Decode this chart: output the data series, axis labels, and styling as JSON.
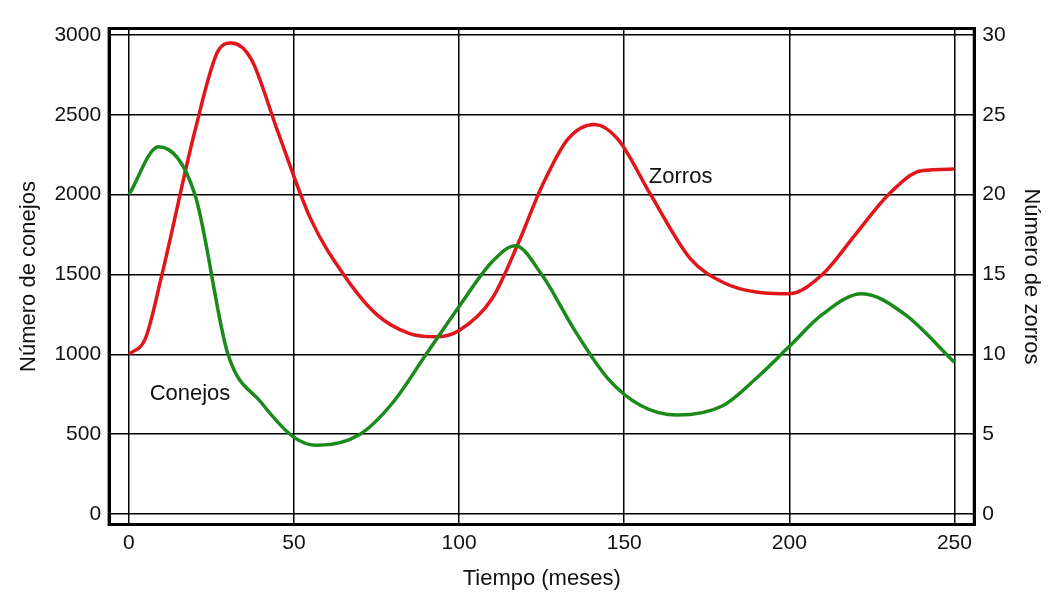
{
  "chart_data": {
    "type": "line",
    "xlabel": "Tiempo (meses)",
    "ylabel": "Número de conejos",
    "y2label": "Número de zorros",
    "xlim": [
      -6,
      256
    ],
    "xticks": [
      0,
      50,
      100,
      150,
      200,
      250
    ],
    "ylim": [
      -65,
      3040
    ],
    "yticks": [
      0,
      500,
      1000,
      1500,
      2000,
      2500,
      3000
    ],
    "y2lim": [
      -0.65,
      30.4
    ],
    "y2ticks": [
      0,
      5,
      10,
      15,
      20,
      25,
      30
    ],
    "grid": true,
    "legend": false,
    "marker": "none",
    "line_style": "solid",
    "series": [
      {
        "name": "Conejos",
        "color": "#1a8a1a",
        "x": [
          0,
          9,
          20,
          30,
          40,
          50,
          57,
          70,
          80,
          90,
          100,
          110,
          117,
          125,
          135,
          145,
          155,
          166,
          180,
          190,
          200,
          210,
          222,
          235,
          250
        ],
        "values": [
          2000,
          2300,
          2000,
          1000,
          700,
          480,
          430,
          500,
          700,
          1000,
          1300,
          1580,
          1680,
          1500,
          1150,
          850,
          680,
          620,
          680,
          850,
          1050,
          1250,
          1380,
          1250,
          950
        ]
      },
      {
        "name": "Zorros",
        "color": "#e0161b",
        "axis": "y2",
        "x": [
          0,
          5,
          10,
          20,
          27,
          31,
          37,
          45,
          55,
          65,
          75,
          85,
          93,
          100,
          110,
          118,
          125,
          133,
          141,
          148,
          158,
          170,
          180,
          190,
          200,
          210,
          220,
          230,
          240,
          250
        ],
        "values": [
          10,
          11,
          15,
          24,
          29,
          29.5,
          28.5,
          24,
          18.5,
          15,
          12.5,
          11.3,
          11.1,
          11.5,
          13.5,
          17,
          20.5,
          23.5,
          24.4,
          23.5,
          20,
          16,
          14.5,
          13.9,
          13.8,
          15,
          17.5,
          20,
          21.5,
          21.6
        ]
      }
    ]
  }
}
